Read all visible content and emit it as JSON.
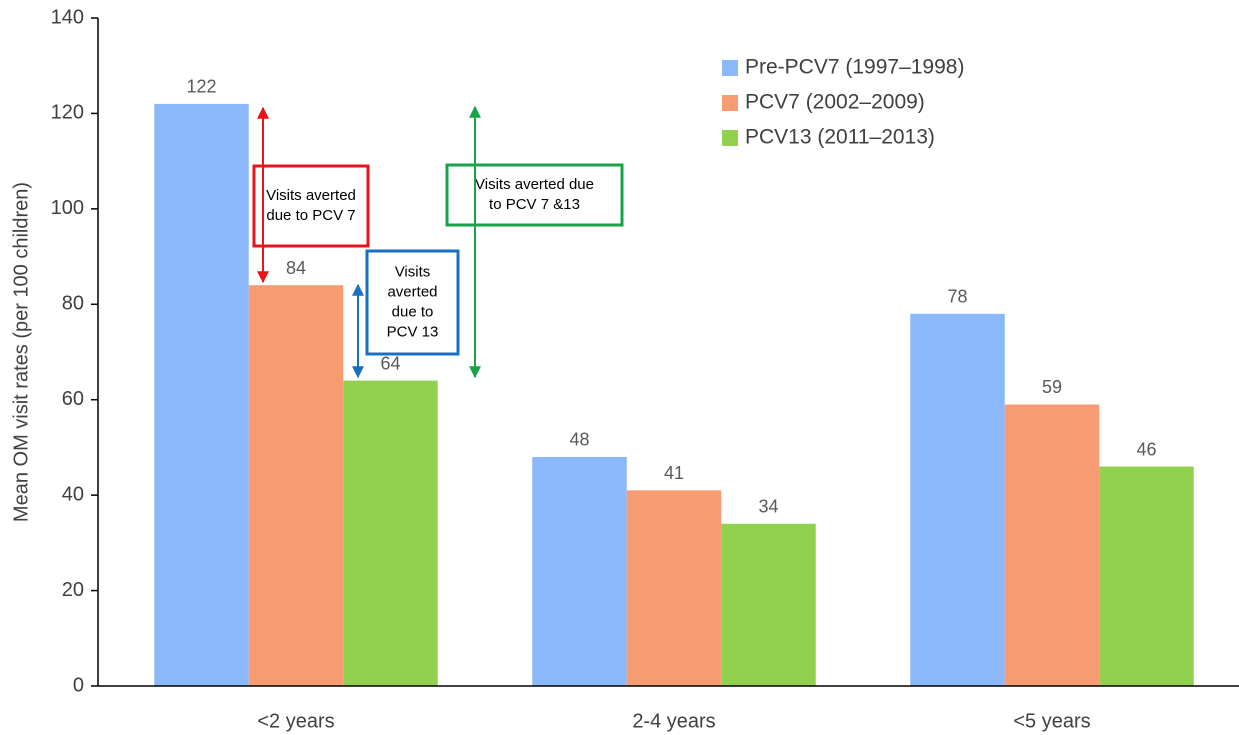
{
  "chart_data": {
    "type": "bar",
    "y_label": "Mean OM visit rates (per 100 children)",
    "categories": [
      "<2 years",
      "2-4 years",
      "<5 years"
    ],
    "series": [
      {
        "name": "Pre-PCV7 (1997–1998)",
        "color": "#8ab8fa",
        "values": [
          122,
          48,
          78
        ]
      },
      {
        "name": "PCV7 (2002–2009)",
        "color": "#f79c72",
        "values": [
          84,
          41,
          59
        ]
      },
      {
        "name": "PCV13 (2011–2013)",
        "color": "#92d050",
        "values": [
          64,
          34,
          46
        ]
      }
    ],
    "ylim": [
      0,
      140
    ],
    "yticks": [
      0,
      20,
      40,
      60,
      80,
      100,
      120,
      140
    ],
    "grid": false,
    "legend": "top-right",
    "annotations": [
      {
        "lines": [
          "Visits averted",
          "due to PCV 7"
        ],
        "color": "#e8141b"
      },
      {
        "lines": [
          "Visits averted due",
          "to PCV 7 &13"
        ],
        "color": "#1aa24a"
      },
      {
        "lines": [
          "Visits",
          "averted",
          "due to",
          "PCV 13"
        ],
        "color": "#1a6fc0"
      }
    ]
  }
}
